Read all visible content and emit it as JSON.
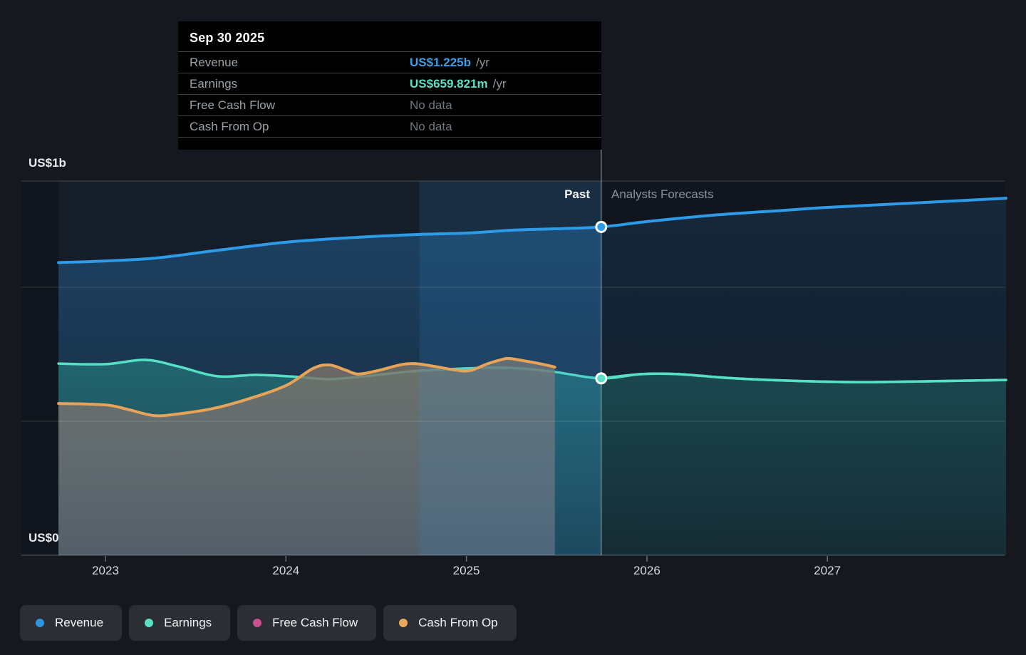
{
  "tooltip": {
    "date": "Sep 30 2025",
    "rows": [
      {
        "label": "Revenue",
        "value": "US$1.225b",
        "suffix": "/yr",
        "color": "#3BA0EA"
      },
      {
        "label": "Earnings",
        "value": "US$659.821m",
        "suffix": "/yr",
        "color": "#5EE0C6"
      },
      {
        "label": "Free Cash Flow",
        "value": "No data",
        "suffix": "",
        "color": "#70767D"
      },
      {
        "label": "Cash From Op",
        "value": "No data",
        "suffix": "",
        "color": "#70767D"
      }
    ]
  },
  "axis": {
    "y_top_label": "US$1b",
    "y_bottom_label": "US$0",
    "years": [
      "2023",
      "2024",
      "2025",
      "2026",
      "2027"
    ]
  },
  "zones": {
    "past": "Past",
    "forecast": "Analysts Forecasts"
  },
  "legend": [
    {
      "label": "Revenue",
      "color": "#2E94E0"
    },
    {
      "label": "Earnings",
      "color": "#5CE0C4"
    },
    {
      "label": "Free Cash Flow",
      "color": "#CC5090"
    },
    {
      "label": "Cash From Op",
      "color": "#E8A85C"
    }
  ],
  "chart_data": {
    "type": "area",
    "unit": "US$ billions per year",
    "x_unit": "calendar year (fractional)",
    "x_range": [
      2022.74,
      2027.99
    ],
    "ylim": [
      0,
      1.4
    ],
    "gridline_values": [
      1.0,
      0.5,
      0
    ],
    "y_grid_labels": {
      "1.0": "US$1b",
      "0": "US$0"
    },
    "divider_t": 2025.747,
    "divider_date": "Sep 30 2025",
    "highlight_band_t": [
      2024.74,
      2025.747
    ],
    "series": [
      {
        "name": "Revenue",
        "color": "#2E9BE8",
        "points": [
          [
            2022.74,
            1.092
          ],
          [
            2023.0,
            1.098
          ],
          [
            2023.28,
            1.109
          ],
          [
            2023.6,
            1.136
          ],
          [
            2024.0,
            1.168
          ],
          [
            2024.39,
            1.186
          ],
          [
            2024.74,
            1.197
          ],
          [
            2025.0,
            1.202
          ],
          [
            2025.26,
            1.213
          ],
          [
            2025.49,
            1.218
          ],
          [
            2025.747,
            1.225
          ],
          [
            2026.0,
            1.245
          ],
          [
            2026.37,
            1.269
          ],
          [
            2026.76,
            1.287
          ],
          [
            2027.0,
            1.298
          ],
          [
            2027.47,
            1.314
          ],
          [
            2027.99,
            1.332
          ]
        ]
      },
      {
        "name": "Earnings",
        "color": "#56E0C4",
        "points": [
          [
            2022.74,
            0.715
          ],
          [
            2023.0,
            0.713
          ],
          [
            2023.22,
            0.729
          ],
          [
            2023.4,
            0.705
          ],
          [
            2023.62,
            0.668
          ],
          [
            2023.84,
            0.673
          ],
          [
            2024.07,
            0.665
          ],
          [
            2024.25,
            0.657
          ],
          [
            2024.47,
            0.67
          ],
          [
            2024.69,
            0.686
          ],
          [
            2024.9,
            0.694
          ],
          [
            2025.14,
            0.7
          ],
          [
            2025.3,
            0.697
          ],
          [
            2025.49,
            0.684
          ],
          [
            2025.747,
            0.65982
          ],
          [
            2025.97,
            0.676
          ],
          [
            2026.17,
            0.676
          ],
          [
            2026.44,
            0.662
          ],
          [
            2026.76,
            0.652
          ],
          [
            2027.15,
            0.646
          ],
          [
            2027.55,
            0.649
          ],
          [
            2027.99,
            0.654
          ]
        ]
      },
      {
        "name": "Cash From Op",
        "color": "#E7A458",
        "points": [
          [
            2022.74,
            0.566
          ],
          [
            2023.0,
            0.561
          ],
          [
            2023.13,
            0.543
          ],
          [
            2023.27,
            0.521
          ],
          [
            2023.4,
            0.527
          ],
          [
            2023.6,
            0.548
          ],
          [
            2023.8,
            0.585
          ],
          [
            2024.0,
            0.633
          ],
          [
            2024.15,
            0.697
          ],
          [
            2024.24,
            0.71
          ],
          [
            2024.33,
            0.691
          ],
          [
            2024.4,
            0.676
          ],
          [
            2024.51,
            0.689
          ],
          [
            2024.63,
            0.71
          ],
          [
            2024.71,
            0.715
          ],
          [
            2024.82,
            0.705
          ],
          [
            2024.94,
            0.691
          ],
          [
            2025.02,
            0.689
          ],
          [
            2025.12,
            0.715
          ],
          [
            2025.2,
            0.731
          ],
          [
            2025.24,
            0.734
          ],
          [
            2025.34,
            0.723
          ],
          [
            2025.42,
            0.713
          ],
          [
            2025.49,
            0.702
          ]
        ]
      },
      {
        "name": "Free Cash Flow",
        "color": "#CB4D8C",
        "points": []
      }
    ],
    "markers": [
      {
        "series": "Revenue",
        "t": 2025.747,
        "value": 1.225,
        "color": "#2E9BE8"
      },
      {
        "series": "Earnings",
        "t": 2025.747,
        "value": 0.65982,
        "color": "#56E0C4"
      }
    ],
    "legend_position": "bottom-left",
    "grid": true
  }
}
